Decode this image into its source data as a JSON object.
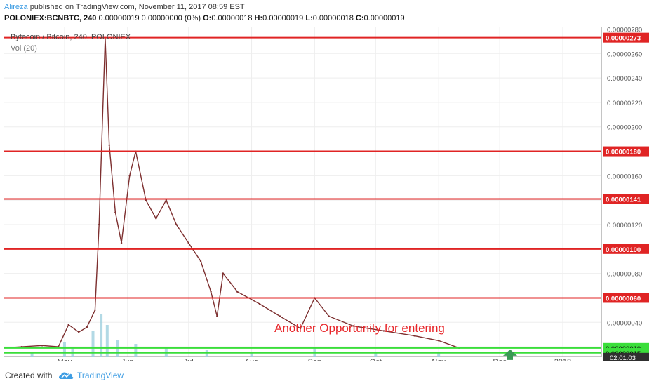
{
  "header": {
    "author": "Alireza",
    "published_text": "published on TradingView.com, November 11, 2017 08:59 EST",
    "symbol": "POLONIEX:BCNBTC, 240",
    "quote": "0.00000019 0.00000000 (0%)",
    "o_label": "O:",
    "o_value": "0.00000018",
    "h_label": "H:",
    "h_value": "0.00000019",
    "l_label": "L:",
    "l_value": "0.00000018",
    "c_label": "C:",
    "c_value": "0.00000019"
  },
  "chart": {
    "title": "Bytecoin / Bitcoin, 240, POLONIEX",
    "volume_label": "Vol (20)",
    "annotation": "Another Opportunity for entering",
    "countdown": "02:01:03"
  },
  "chart_data": {
    "type": "line",
    "title": "Bytecoin / Bitcoin, 240, POLONIEX",
    "x_ticks": [
      "May",
      "Jun",
      "Jul",
      "Aug",
      "Sep",
      "Oct",
      "Nov",
      "Dec",
      "2018"
    ],
    "y_ticks": [
      "0.00000020",
      "0.00000040",
      "0.00000060",
      "0.00000080",
      "0.00000100",
      "0.00000120",
      "0.00000140",
      "0.00000160",
      "0.00000180",
      "0.00000200",
      "0.00000220",
      "0.00000240",
      "0.00000260",
      "0.00000280"
    ],
    "ylim": [
      1.2e-07,
      2.82e-06
    ],
    "series": [
      {
        "name": "",
        "color": "#7d2f2f",
        "points": [
          [
            "2017-04-01",
            1.9e-07
          ],
          [
            "2017-04-10",
            2e-07
          ],
          [
            "2017-04-20",
            2.1e-07
          ],
          [
            "2017-04-28",
            2e-07
          ],
          [
            "2017-05-03",
            3.8e-07
          ],
          [
            "2017-05-08",
            3.2e-07
          ],
          [
            "2017-05-12",
            3.6e-07
          ],
          [
            "2017-05-16",
            5e-07
          ],
          [
            "2017-05-18",
            1.2e-06
          ],
          [
            "2017-05-21",
            2.73e-06
          ],
          [
            "2017-05-23",
            1.85e-06
          ],
          [
            "2017-05-26",
            1.3e-06
          ],
          [
            "2017-05-29",
            1.05e-06
          ],
          [
            "2017-06-02",
            1.6e-06
          ],
          [
            "2017-06-05",
            1.8e-06
          ],
          [
            "2017-06-10",
            1.4e-06
          ],
          [
            "2017-06-15",
            1.25e-06
          ],
          [
            "2017-06-20",
            1.4e-06
          ],
          [
            "2017-06-25",
            1.2e-06
          ],
          [
            "2017-07-01",
            1.05e-06
          ],
          [
            "2017-07-07",
            9e-07
          ],
          [
            "2017-07-12",
            6.5e-07
          ],
          [
            "2017-07-15",
            4.5e-07
          ],
          [
            "2017-07-18",
            8e-07
          ],
          [
            "2017-07-25",
            6.5e-07
          ],
          [
            "2017-08-05",
            5.5e-07
          ],
          [
            "2017-08-15",
            4.5e-07
          ],
          [
            "2017-08-25",
            3.5e-07
          ],
          [
            "2017-09-01",
            6e-07
          ],
          [
            "2017-09-08",
            4.5e-07
          ],
          [
            "2017-09-20",
            3.7e-07
          ],
          [
            "2017-10-05",
            3.3e-07
          ],
          [
            "2017-10-20",
            2.9e-07
          ],
          [
            "2017-11-01",
            2.5e-07
          ],
          [
            "2017-11-11",
            1.9e-07
          ]
        ]
      }
    ],
    "volume": {
      "name": "Vol (20)",
      "color": "#9fd0de",
      "points": [
        [
          "2017-04-15",
          0.1
        ],
        [
          "2017-05-01",
          0.35
        ],
        [
          "2017-05-05",
          0.2
        ],
        [
          "2017-05-15",
          0.6
        ],
        [
          "2017-05-19",
          1.0
        ],
        [
          "2017-05-22",
          0.75
        ],
        [
          "2017-05-27",
          0.4
        ],
        [
          "2017-06-05",
          0.3
        ],
        [
          "2017-06-20",
          0.2
        ],
        [
          "2017-07-10",
          0.15
        ],
        [
          "2017-08-01",
          0.1
        ],
        [
          "2017-09-01",
          0.2
        ],
        [
          "2017-10-01",
          0.08
        ],
        [
          "2017-11-01",
          0.1
        ]
      ]
    },
    "levels": [
      {
        "value": 2.73e-06,
        "label": "0.00000273",
        "color": "#e02424"
      },
      {
        "value": 1.8e-06,
        "label": "0.00000180",
        "color": "#e02424"
      },
      {
        "value": 1.41e-06,
        "label": "0.00000141",
        "color": "#e02424"
      },
      {
        "value": 1e-06,
        "label": "0.00000100",
        "color": "#e02424"
      },
      {
        "value": 6e-07,
        "label": "0.00000060",
        "color": "#e02424"
      }
    ],
    "support_levels": [
      {
        "value": 1.9e-07,
        "label": "0.00000019",
        "color": "#3ade3a"
      },
      {
        "value": 1.5e-07,
        "label": "0.00000015",
        "color": "#3ade3a"
      }
    ],
    "x_range": [
      "2017-04-01",
      "2018-01-20"
    ],
    "grid": true
  },
  "footer": {
    "created_with": "Created with",
    "brand": "TradingView"
  },
  "colors": {
    "resistance": "#e02424",
    "support": "#3ade3a",
    "price_line": "#7d2f2f",
    "author": "#3e9de3",
    "annotation": "#e8262a",
    "arrow": "#3a9a54"
  }
}
